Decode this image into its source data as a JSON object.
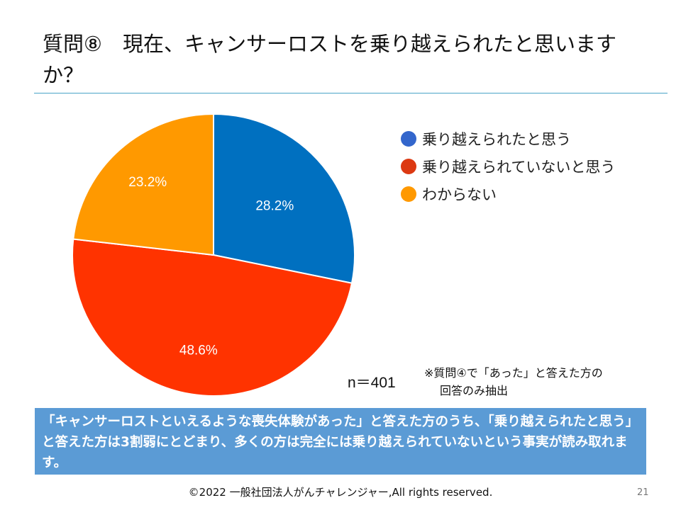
{
  "title": "質問⑧　現在、キャンサーロストを乗り越えられたと思いますか？",
  "chart_data": {
    "type": "pie",
    "title": "質問⑧　現在、キャンサーロストを乗り越えられたと思いますか？",
    "start": "12 o'clock, clockwise",
    "slices": [
      {
        "label": "乗り越えられたと思う",
        "value": 28.2,
        "display": "28.2%",
        "color": "#0070c0"
      },
      {
        "label": "乗り越えられていないと思う",
        "value": 48.6,
        "display": "48.6%",
        "color": "#ff3300"
      },
      {
        "label": "わからない",
        "value": 23.2,
        "display": "23.2%",
        "color": "#ff9900"
      }
    ],
    "legend_position": "right"
  },
  "legend": [
    {
      "label": "乗り越えられたと思う",
      "color": "#3366cc"
    },
    {
      "label": "乗り越えられていないと思う",
      "color": "#dc3912"
    },
    {
      "label": "わからない",
      "color": "#ff9900"
    }
  ],
  "sample_size": "n＝401",
  "note": {
    "line1": "※質問④で「あった」と答えた方の",
    "line2": "回答のみ抽出"
  },
  "summary": "「キャンサーロストといえるような喪失体験があった」と答えた方のうち、「乗り越えられたと思う」と答えた方は3割弱にとどまり、多くの方は完全には乗り越えられていないという事実が読み取れます。",
  "footer": "©2022 一般社団法人がんチャレンジャー,All rights reserved.",
  "page_number": "21",
  "colors": {
    "rule": "#4aa3c7",
    "summary_bg": "#5b9bd5"
  }
}
